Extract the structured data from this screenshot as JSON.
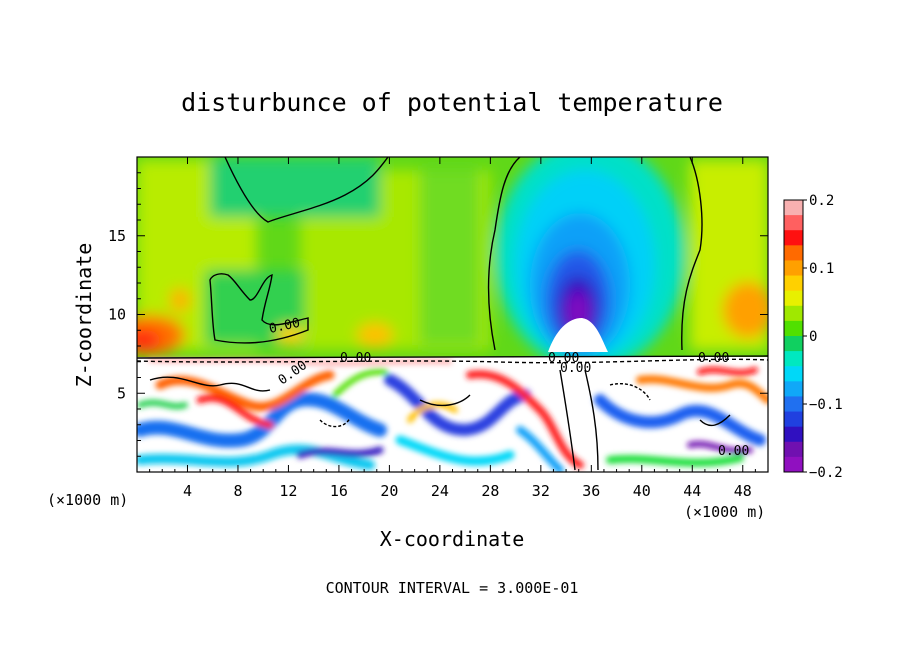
{
  "chart_data": {
    "type": "heatmap",
    "title": "disturbunce of potential temperature",
    "xlabel": "X-coordinate",
    "ylabel": "Z-coordinate",
    "x_unit_left": "(×1000 m)",
    "x_unit_right": "(×1000 m)",
    "xlim": [
      0,
      50
    ],
    "ylim": [
      0,
      20
    ],
    "x_ticks": [
      4,
      8,
      12,
      16,
      20,
      24,
      28,
      32,
      36,
      40,
      44,
      48
    ],
    "y_ticks": [
      5,
      10,
      15
    ],
    "colorbar": {
      "range": [
        -0.2,
        0.2
      ],
      "tick_labels": [
        "0.2",
        "0.1",
        "0",
        "−0.1",
        "−0.2"
      ],
      "tick_values": [
        0.2,
        0.1,
        0,
        -0.1,
        -0.2
      ],
      "colors": [
        "#f8b0b0",
        "#ff6060",
        "#ff1010",
        "#ff6a00",
        "#ffa000",
        "#ffd000",
        "#e8f000",
        "#a0e800",
        "#50e000",
        "#10d060",
        "#00e8c0",
        "#00d8f8",
        "#10a8f8",
        "#2070f0",
        "#2040e0",
        "#3010c0",
        "#7010b0",
        "#9010c0"
      ]
    },
    "contour_labels": [
      "0.00",
      "0.00",
      "0.00",
      "0.00",
      "0.00",
      "0.00",
      "0.00"
    ],
    "footer": "CONTOUR INTERVAL = 3.000E-01",
    "features": {
      "upper_layer": "positive/neutral green-yellow field above z≈7.5 with warm maxima near x≈1, x≈46 and a strong negative (cyan→purple) anomaly centred near x≈34, z≈10–13",
      "lower_layer": "highly turbulent mixed layer below z≈7.5 with white (out-of-range) regions and colored filaments"
    }
  }
}
